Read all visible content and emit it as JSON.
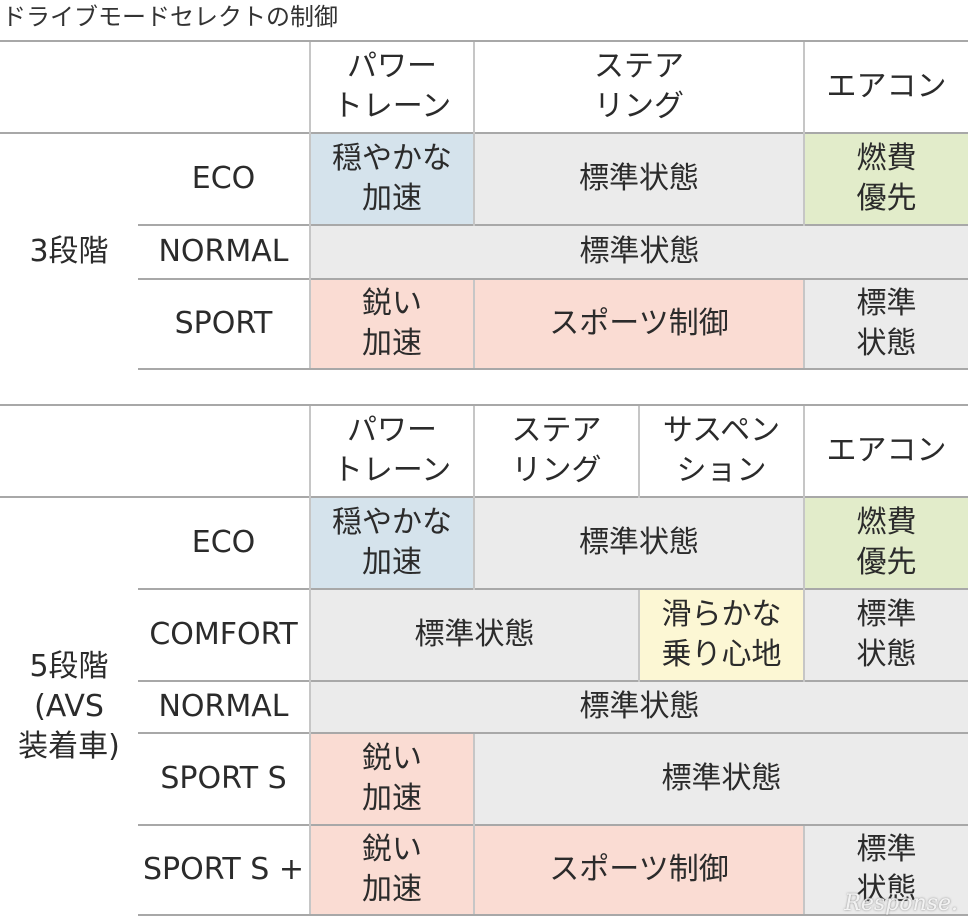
{
  "title": "ドライブモードセレクトの制御",
  "colors": {
    "blue": "#d5e3ec",
    "grey": "#ebebeb",
    "green": "#e2ecca",
    "pink": "#fadcd3",
    "yellow": "#fcf7d4"
  },
  "table1": {
    "headers": {
      "powertrain": "パワー\nトレーン",
      "steering": "ステア\nリング",
      "aircon": "エアコン"
    },
    "group": "3段階",
    "rows": {
      "eco": {
        "mode": "ECO",
        "powertrain": "穏やかな\n加速",
        "steering": "標準状態",
        "aircon": "燃費\n優先"
      },
      "normal": {
        "mode": "NORMAL",
        "all": "標準状態"
      },
      "sport": {
        "mode": "SPORT",
        "powertrain": "鋭い\n加速",
        "steering": "スポーツ制御",
        "aircon": "標準\n状態"
      }
    }
  },
  "table2": {
    "headers": {
      "powertrain": "パワー\nトレーン",
      "steering": "ステア\nリング",
      "suspension": "サスペン\nション",
      "aircon": "エアコン"
    },
    "group": "5段階\n(AVS\n装着車)",
    "rows": {
      "eco": {
        "mode": "ECO",
        "powertrain": "穏やかな\n加速",
        "steer_susp": "標準状態",
        "aircon": "燃費\n優先"
      },
      "comfort": {
        "mode": "COMFORT",
        "pt_steer": "標準状態",
        "suspension": "滑らかな\n乗り心地",
        "aircon": "標準\n状態"
      },
      "normal": {
        "mode": "NORMAL",
        "all": "標準状態"
      },
      "sport_s": {
        "mode": "SPORT S",
        "powertrain": "鋭い\n加速",
        "rest": "標準状態"
      },
      "sport_s_plus": {
        "mode": "SPORT S +",
        "powertrain": "鋭い\n加速",
        "steer_susp": "スポーツ制御",
        "aircon": "標準\n状態"
      }
    }
  },
  "watermark": "Response."
}
